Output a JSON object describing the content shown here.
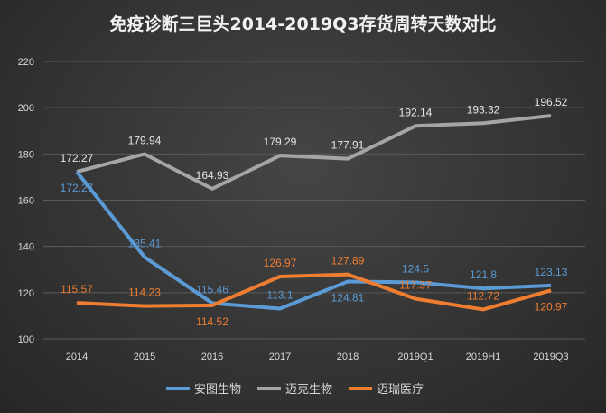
{
  "chart_data": {
    "type": "line",
    "title": "免疫诊断三巨头2014-2019Q3存货周转天数对比",
    "categories": [
      "2014",
      "2015",
      "2016",
      "2017",
      "2018",
      "2019Q1",
      "2019H1",
      "2019Q3"
    ],
    "ylim": [
      100,
      220
    ],
    "yticks": [
      100,
      120,
      140,
      160,
      180,
      200,
      220
    ],
    "grid": true,
    "legend": "bottom",
    "series": [
      {
        "name": "安图生物",
        "color": "#5b9bd5",
        "values": [
          172.27,
          135.41,
          115.46,
          113.1,
          124.81,
          124.5,
          121.8,
          123.13
        ]
      },
      {
        "name": "迈克生物",
        "color": "#a5a5a5",
        "values": [
          172.27,
          179.94,
          164.93,
          179.29,
          177.91,
          192.14,
          193.32,
          196.52
        ]
      },
      {
        "name": "迈瑞医疗",
        "color": "#ed7d31",
        "values": [
          115.57,
          114.23,
          114.52,
          126.97,
          127.89,
          117.37,
          112.72,
          120.97
        ]
      }
    ]
  }
}
